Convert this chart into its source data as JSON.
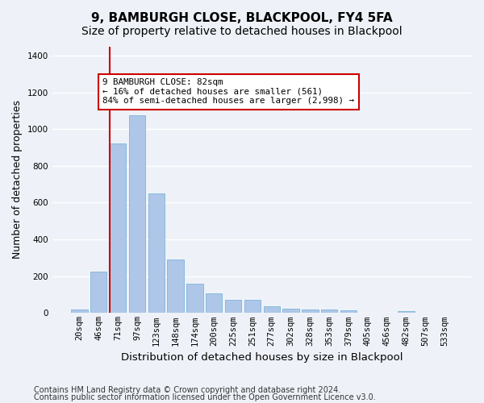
{
  "title": "9, BAMBURGH CLOSE, BLACKPOOL, FY4 5FA",
  "subtitle": "Size of property relative to detached houses in Blackpool",
  "xlabel": "Distribution of detached houses by size in Blackpool",
  "ylabel": "Number of detached properties",
  "footer_line1": "Contains HM Land Registry data © Crown copyright and database right 2024.",
  "footer_line2": "Contains public sector information licensed under the Open Government Licence v3.0.",
  "bar_values": [
    20,
    225,
    920,
    1075,
    650,
    290,
    158,
    105,
    70,
    70,
    38,
    25,
    20,
    20,
    15,
    0,
    0,
    12,
    0,
    0
  ],
  "bar_labels": [
    "20sqm",
    "46sqm",
    "71sqm",
    "97sqm",
    "123sqm",
    "148sqm",
    "174sqm",
    "200sqm",
    "225sqm",
    "251sqm",
    "277sqm",
    "302sqm",
    "328sqm",
    "353sqm",
    "379sqm",
    "405sqm",
    "456sqm",
    "482sqm",
    "507sqm",
    "533sqm"
  ],
  "bar_color": "#aec6e8",
  "bar_edgecolor": "#6baed6",
  "annotation_text": "9 BAMBURGH CLOSE: 82sqm\n← 16% of detached houses are smaller (561)\n84% of semi-detached houses are larger (2,998) →",
  "annotation_box_color": "#ffffff",
  "annotation_box_edgecolor": "#cc0000",
  "vline_x": 1.575,
  "vline_color": "#cc0000",
  "ylim": [
    0,
    1450
  ],
  "background_color": "#eef2f8",
  "grid_color": "#ffffff",
  "title_fontsize": 11,
  "subtitle_fontsize": 10,
  "axis_label_fontsize": 9,
  "tick_fontsize": 7.5,
  "footer_fontsize": 7
}
